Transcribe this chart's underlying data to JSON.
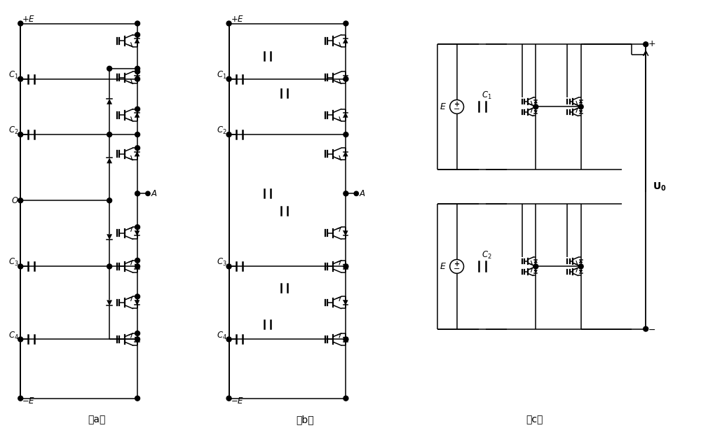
{
  "bg_color": "#ffffff",
  "line_color": "#000000",
  "fig_width": 10.0,
  "fig_height": 6.21,
  "label_a": "（a）",
  "label_b": "（b）",
  "label_c": "（c）"
}
